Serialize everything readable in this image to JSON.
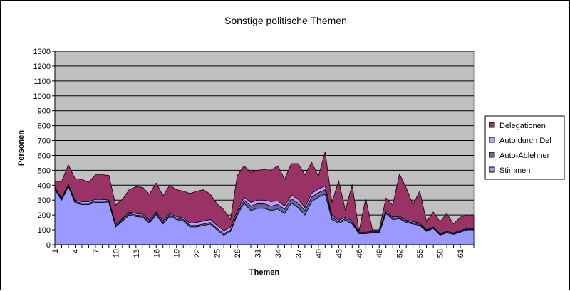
{
  "chart_data": {
    "type": "area",
    "stacked": true,
    "title": "Sonstige politische Themen",
    "xlabel": "Themen",
    "ylabel": "Personen",
    "ylim": [
      0,
      1300
    ],
    "yticks": [
      0,
      100,
      200,
      300,
      400,
      500,
      600,
      700,
      800,
      900,
      1000,
      1100,
      1200,
      1300
    ],
    "xtick_labels": [
      "1",
      "4",
      "7",
      "10",
      "13",
      "16",
      "19",
      "22",
      "25",
      "28",
      "31",
      "34",
      "37",
      "40",
      "43",
      "46",
      "49",
      "52",
      "55",
      "58",
      "61"
    ],
    "x": [
      1,
      2,
      3,
      4,
      5,
      6,
      7,
      8,
      9,
      10,
      11,
      12,
      13,
      14,
      15,
      16,
      17,
      18,
      19,
      20,
      21,
      22,
      23,
      24,
      25,
      26,
      27,
      28,
      29,
      30,
      31,
      32,
      33,
      34,
      35,
      36,
      37,
      38,
      39,
      40,
      41,
      42,
      43,
      44,
      45,
      46,
      47,
      48,
      49,
      50,
      51,
      52,
      53,
      54,
      55,
      56,
      57,
      58,
      59,
      60,
      61,
      62,
      63
    ],
    "grid": true,
    "plot_background": "#c0c0c0",
    "legend_position": "right",
    "legend_order": [
      "Delegationen",
      "Auto durch Del",
      "Auto-Ablehner",
      "Stimmen"
    ],
    "series": [
      {
        "name": "Stimmen",
        "color": "#9999ff",
        "values": [
          370,
          300,
          390,
          280,
          270,
          270,
          285,
          285,
          280,
          120,
          160,
          200,
          190,
          185,
          145,
          200,
          140,
          190,
          170,
          160,
          120,
          120,
          130,
          140,
          100,
          65,
          90,
          200,
          280,
          230,
          245,
          245,
          230,
          240,
          210,
          280,
          250,
          200,
          290,
          320,
          340,
          170,
          145,
          165,
          140,
          75,
          75,
          80,
          80,
          210,
          170,
          175,
          150,
          140,
          130,
          90,
          110,
          65,
          80,
          70,
          85,
          100,
          100
        ]
      },
      {
        "name": "Auto-Ablehner",
        "color": "#666699",
        "values": [
          8,
          8,
          8,
          10,
          10,
          10,
          10,
          10,
          10,
          8,
          8,
          10,
          10,
          10,
          10,
          10,
          10,
          10,
          10,
          10,
          10,
          10,
          10,
          10,
          10,
          10,
          10,
          10,
          20,
          30,
          30,
          30,
          30,
          30,
          30,
          30,
          30,
          30,
          30,
          30,
          30,
          15,
          10,
          10,
          10,
          5,
          5,
          5,
          5,
          10,
          8,
          8,
          8,
          8,
          8,
          5,
          5,
          5,
          5,
          5,
          5,
          5,
          5
        ]
      },
      {
        "name": "Auto durch Del",
        "color": "#cc99ff",
        "values": [
          8,
          8,
          8,
          8,
          10,
          10,
          10,
          10,
          10,
          8,
          8,
          10,
          10,
          10,
          10,
          10,
          10,
          10,
          10,
          10,
          15,
          20,
          20,
          20,
          20,
          20,
          20,
          15,
          20,
          25,
          25,
          25,
          30,
          25,
          20,
          25,
          25,
          20,
          25,
          25,
          25,
          15,
          10,
          10,
          10,
          5,
          5,
          5,
          5,
          10,
          8,
          8,
          8,
          8,
          8,
          5,
          5,
          5,
          5,
          5,
          5,
          5,
          5
        ]
      },
      {
        "name": "Delegationen",
        "color": "#993366",
        "values": [
          40,
          110,
          130,
          145,
          150,
          130,
          165,
          165,
          165,
          130,
          130,
          150,
          180,
          180,
          175,
          195,
          170,
          190,
          180,
          180,
          200,
          210,
          210,
          170,
          145,
          140,
          50,
          240,
          210,
          200,
          200,
          205,
          210,
          235,
          180,
          210,
          240,
          220,
          210,
          85,
          230,
          85,
          265,
          45,
          245,
          5,
          225,
          10,
          10,
          85,
          80,
          285,
          215,
          115,
          215,
          55,
          100,
          80,
          120,
          60,
          90,
          90,
          90
        ]
      }
    ]
  }
}
